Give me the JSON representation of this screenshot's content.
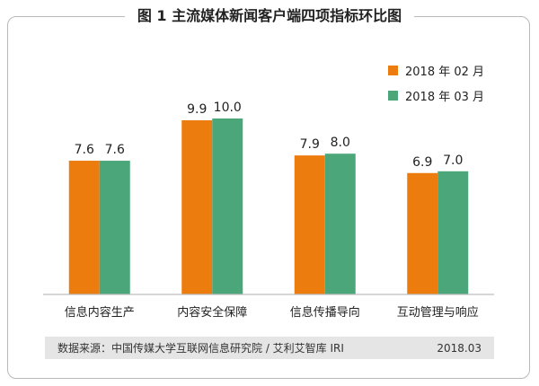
{
  "title": "图 1  主流媒体新闻客户端四项指标环比图",
  "source": {
    "text": "数据来源：中国传媒大学互联网信息研究院 / 艾利艾智库 IRI",
    "date": "2018.03"
  },
  "chart_data": {
    "type": "bar",
    "title": "图 1  主流媒体新闻客户端四项指标环比图",
    "categories": [
      "信息内容生产",
      "内容安全保障",
      "信息传播导向",
      "互动管理与响应"
    ],
    "series": [
      {
        "name": "2018 年 02 月",
        "color": "#ed7c0f",
        "values": [
          7.6,
          9.9,
          7.9,
          6.9
        ],
        "labels": [
          "7.6",
          "9.9",
          "7.9",
          "6.9"
        ]
      },
      {
        "name": "2018 年 03 月",
        "color": "#4ba77a",
        "values": [
          7.6,
          10.0,
          8.0,
          7.0
        ],
        "labels": [
          "7.6",
          "10.0",
          "8.0",
          "7.0"
        ]
      }
    ],
    "ylim": [
      0,
      12
    ],
    "grid": false,
    "legend_position": "top-right",
    "xlabel": "",
    "ylabel": ""
  }
}
